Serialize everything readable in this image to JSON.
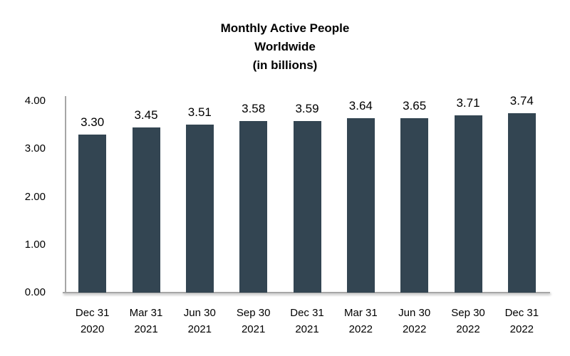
{
  "chart_data": {
    "type": "bar",
    "title": "Monthly Active People Worldwide (in billions)",
    "title_lines": [
      "Monthly Active People",
      "Worldwide",
      "(in billions)"
    ],
    "categories": [
      [
        "Dec 31",
        "2020"
      ],
      [
        "Mar 31",
        "2021"
      ],
      [
        "Jun 30",
        "2021"
      ],
      [
        "Sep 30",
        "2021"
      ],
      [
        "Dec 31",
        "2021"
      ],
      [
        "Mar 31",
        "2022"
      ],
      [
        "Jun 30",
        "2022"
      ],
      [
        "Sep 30",
        "2022"
      ],
      [
        "Dec 31",
        "2022"
      ]
    ],
    "values": [
      3.3,
      3.45,
      3.51,
      3.58,
      3.59,
      3.64,
      3.65,
      3.71,
      3.74
    ],
    "value_labels": [
      "3.30",
      "3.45",
      "3.51",
      "3.58",
      "3.59",
      "3.64",
      "3.65",
      "3.71",
      "3.74"
    ],
    "y_ticks": [
      "0.00",
      "1.00",
      "2.00",
      "3.00",
      "4.00"
    ],
    "y_tick_values": [
      0,
      1,
      2,
      3,
      4
    ],
    "ylim": [
      0,
      4
    ],
    "xlabel": "",
    "ylabel": "",
    "grid": false,
    "legend": "none",
    "data_labels": true,
    "bar_color": "#334552",
    "axis_color": "#a6a6a6",
    "text_color": "#000000"
  }
}
